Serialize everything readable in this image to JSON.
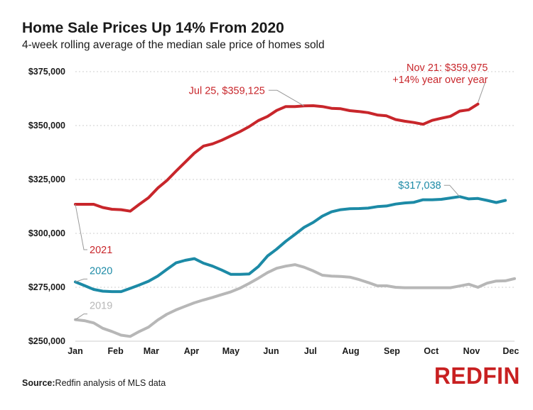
{
  "title": "Home Sale Prices Up 14% From 2020",
  "subtitle": "4-week rolling average of the median sale price of homes sold",
  "source_label": "Source:",
  "source_text": "Redfin analysis of MLS data",
  "logo": "REDFIN",
  "colors": {
    "y2021": "#c8262b",
    "y2020": "#1c8aa6",
    "y2019": "#b7b7b7",
    "grid": "#cfcfcf",
    "callout": "#9a9a9a"
  },
  "chart_data": {
    "type": "line",
    "title": "Home Sale Prices Up 14% From 2020",
    "subtitle": "4-week rolling average of the median sale price of homes sold",
    "xlabel": "",
    "ylabel": "",
    "x_unit": "week of year",
    "xlim": [
      1,
      49
    ],
    "ylim": [
      250000,
      375000
    ],
    "y_ticks": [
      250000,
      275000,
      300000,
      325000,
      350000,
      375000
    ],
    "y_tick_labels": [
      "$250,000",
      "$275,000",
      "$300,000",
      "$325,000",
      "$350,000",
      "$375,000"
    ],
    "x_ticks": [
      1,
      5.4,
      9.3,
      13.7,
      18,
      22.4,
      26.7,
      31.1,
      35.6,
      39.9,
      44.3,
      48.6
    ],
    "x_tick_labels": [
      "Jan",
      "Feb",
      "Mar",
      "Apr",
      "May",
      "Jun",
      "Jul",
      "Aug",
      "Sep",
      "Oct",
      "Nov",
      "Dec"
    ],
    "grid": "horizontal",
    "series": [
      {
        "name": "2021",
        "key": "y2021",
        "values": [
          313500,
          313500,
          313500,
          312000,
          311200,
          311000,
          310300,
          313500,
          316500,
          321000,
          324500,
          328800,
          333000,
          337200,
          340500,
          341500,
          343200,
          345200,
          347200,
          349500,
          352300,
          354200,
          357000,
          358800,
          358800,
          359125,
          359200,
          358800,
          358000,
          357800,
          356900,
          356500,
          356000,
          354900,
          354500,
          352800,
          352000,
          351400,
          350600,
          352400,
          353400,
          354300,
          356700,
          357300,
          359975
        ]
      },
      {
        "name": "2020",
        "key": "y2020",
        "values": [
          277500,
          275800,
          274000,
          273200,
          273000,
          273000,
          274500,
          276100,
          277800,
          280200,
          283300,
          286300,
          287500,
          288300,
          286200,
          284800,
          283000,
          281000,
          281000,
          281200,
          284600,
          289500,
          292700,
          296300,
          299500,
          302800,
          305100,
          308000,
          310000,
          311000,
          311400,
          311500,
          311700,
          312400,
          312700,
          313600,
          314100,
          314400,
          315600,
          315600,
          315800,
          316400,
          317038,
          316000,
          316200,
          315300,
          314300,
          315300
        ]
      },
      {
        "name": "2019",
        "key": "y2019",
        "values": [
          260000,
          259500,
          258500,
          256000,
          254500,
          252800,
          252200,
          254500,
          256500,
          259800,
          262500,
          264500,
          266200,
          267800,
          269100,
          270300,
          271600,
          272900,
          274600,
          276800,
          279200,
          281800,
          283800,
          284800,
          285500,
          284300,
          282600,
          280600,
          280200,
          280000,
          279700,
          278600,
          277200,
          275700,
          275700,
          275000,
          274800,
          274800,
          274800,
          274800,
          274800,
          274800,
          275600,
          276400,
          275000,
          276900,
          277900,
          278000,
          279000
        ]
      }
    ],
    "annotations": [
      {
        "series": "y2021",
        "x": 26,
        "y": 359125,
        "text": "Jul 25, $359,125"
      },
      {
        "series": "y2021",
        "x": 45,
        "y": 359975,
        "text": "Nov 21: $359,975",
        "text2": "+14% year over year"
      },
      {
        "series": "y2020",
        "x": 43,
        "y": 317038,
        "text": "$317,038"
      },
      {
        "series": "y2021",
        "x": 1,
        "y": 313500,
        "text": "2021"
      },
      {
        "series": "y2020",
        "x": 1,
        "y": 277500,
        "text": "2020"
      },
      {
        "series": "y2019",
        "x": 1,
        "y": 260000,
        "text": "2019"
      }
    ]
  }
}
